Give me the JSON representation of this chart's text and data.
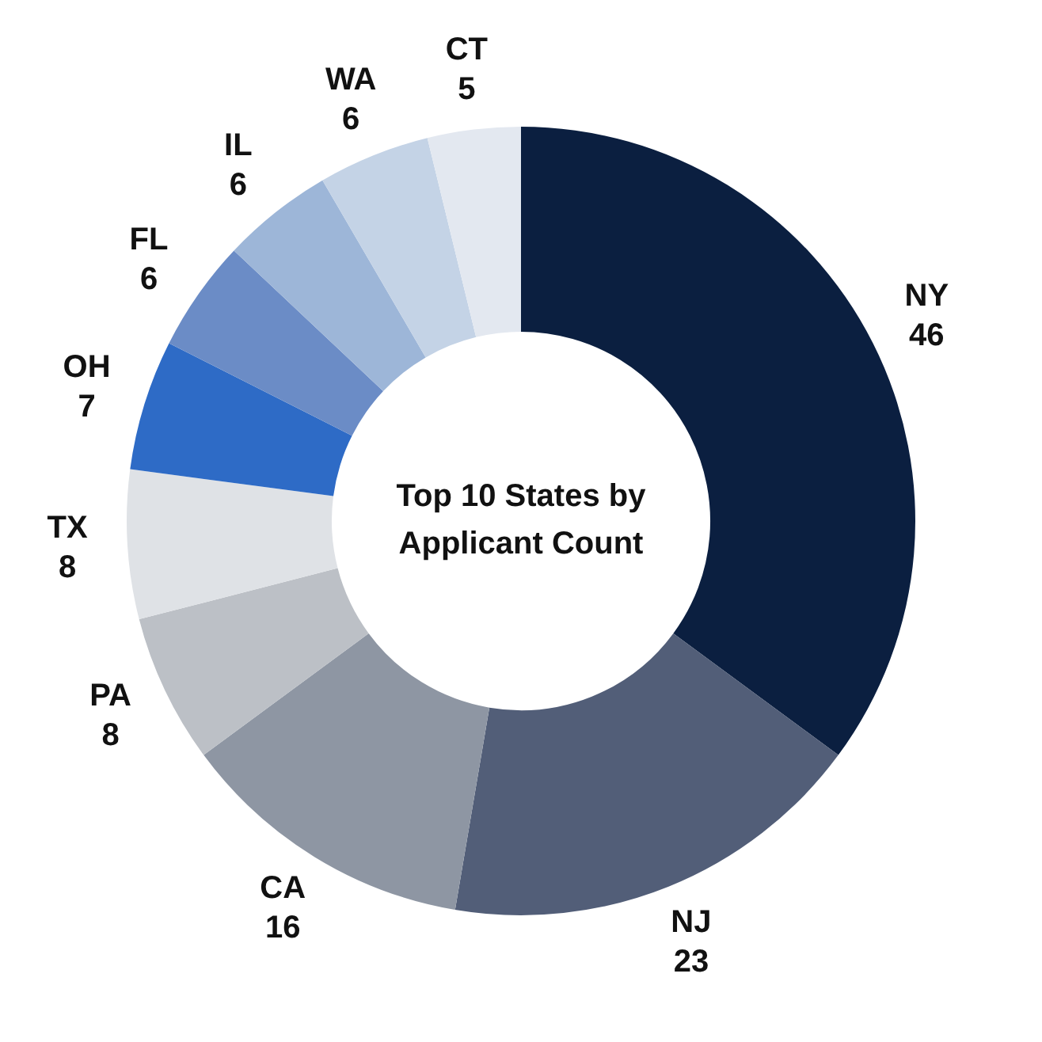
{
  "chart_data": {
    "type": "donut",
    "title": "Top 10 States by Applicant Count",
    "categories": [
      "NY",
      "NJ",
      "CA",
      "PA",
      "TX",
      "OH",
      "FL",
      "IL",
      "WA",
      "CT"
    ],
    "values": [
      46,
      23,
      16,
      8,
      8,
      7,
      6,
      6,
      6,
      5
    ],
    "colors": [
      "#0b1f40",
      "#525e78",
      "#8e96a3",
      "#bcc0c6",
      "#dfe2e6",
      "#2e6bc6",
      "#6b8cc6",
      "#9db6d8",
      "#c4d3e6",
      "#e3e8f0"
    ],
    "data_labels": true,
    "legend": false
  }
}
